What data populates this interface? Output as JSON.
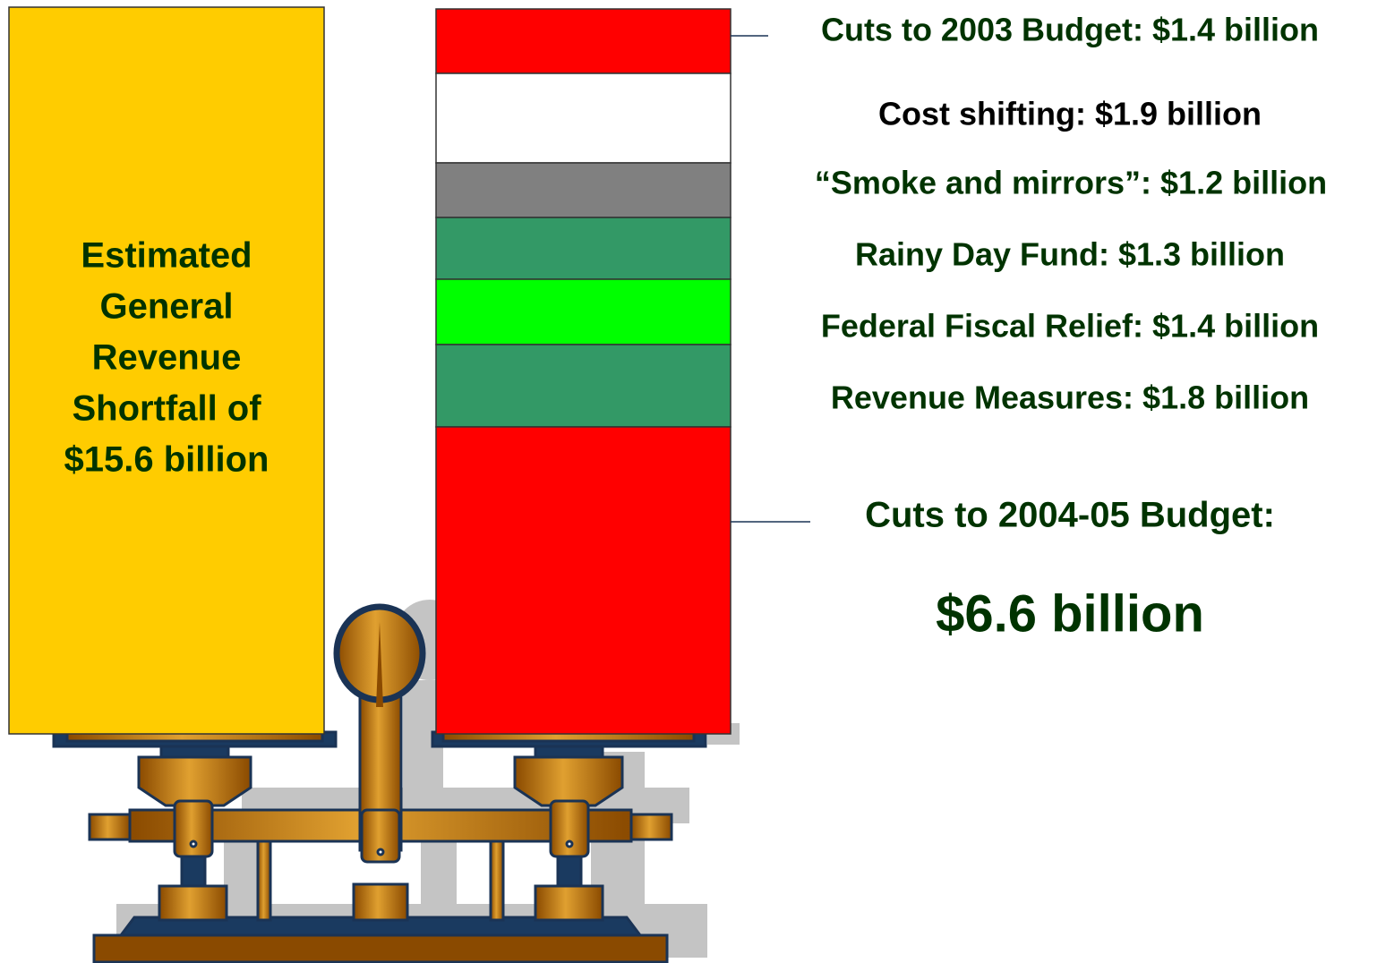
{
  "left_box": {
    "lines": [
      "Estimated",
      "General",
      "Revenue",
      "Shortfall of",
      "$15.6 billion"
    ]
  },
  "labels": [
    "Cuts to 2003 Budget: $1.4 billion",
    "Cost shifting: $1.9 billion",
    "“Smoke and mirrors”: $1.2 billion",
    "Rainy Day Fund: $1.3 billion",
    "Federal Fiscal Relief: $1.4 billion",
    "Revenue Measures: $1.8 billion"
  ],
  "bottom_label": {
    "heading": "Cuts to 2004-05 Budget:",
    "amount": "$6.6 billion"
  }
}
